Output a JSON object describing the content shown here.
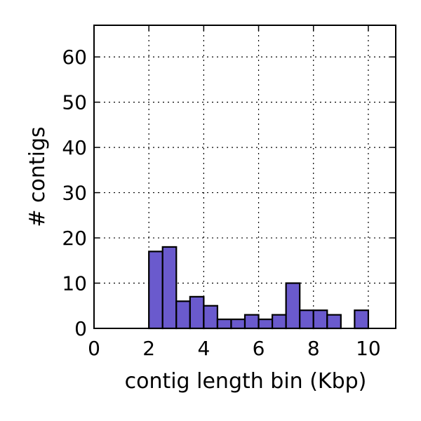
{
  "chart_data": {
    "type": "bar",
    "xlabel": "contig length bin (Kbp)",
    "ylabel": "# contigs",
    "xlim": [
      0,
      11
    ],
    "ylim": [
      0,
      67
    ],
    "xticks": [
      0,
      2,
      4,
      6,
      8,
      10
    ],
    "yticks": [
      0,
      10,
      20,
      30,
      40,
      50,
      60
    ],
    "grid": true,
    "bar_color": "#6a5acd",
    "bin_width": 0.5,
    "bins": [
      {
        "x": 0.0,
        "value": 0
      },
      {
        "x": 2.0,
        "value": 17
      },
      {
        "x": 2.5,
        "value": 18
      },
      {
        "x": 3.0,
        "value": 6
      },
      {
        "x": 3.5,
        "value": 7
      },
      {
        "x": 4.0,
        "value": 5
      },
      {
        "x": 4.5,
        "value": 2
      },
      {
        "x": 5.0,
        "value": 2
      },
      {
        "x": 5.5,
        "value": 3
      },
      {
        "x": 6.0,
        "value": 2
      },
      {
        "x": 6.5,
        "value": 3
      },
      {
        "x": 7.0,
        "value": 10
      },
      {
        "x": 7.5,
        "value": 4
      },
      {
        "x": 8.0,
        "value": 4
      },
      {
        "x": 8.5,
        "value": 3
      },
      {
        "x": 9.5,
        "value": 4
      }
    ]
  }
}
